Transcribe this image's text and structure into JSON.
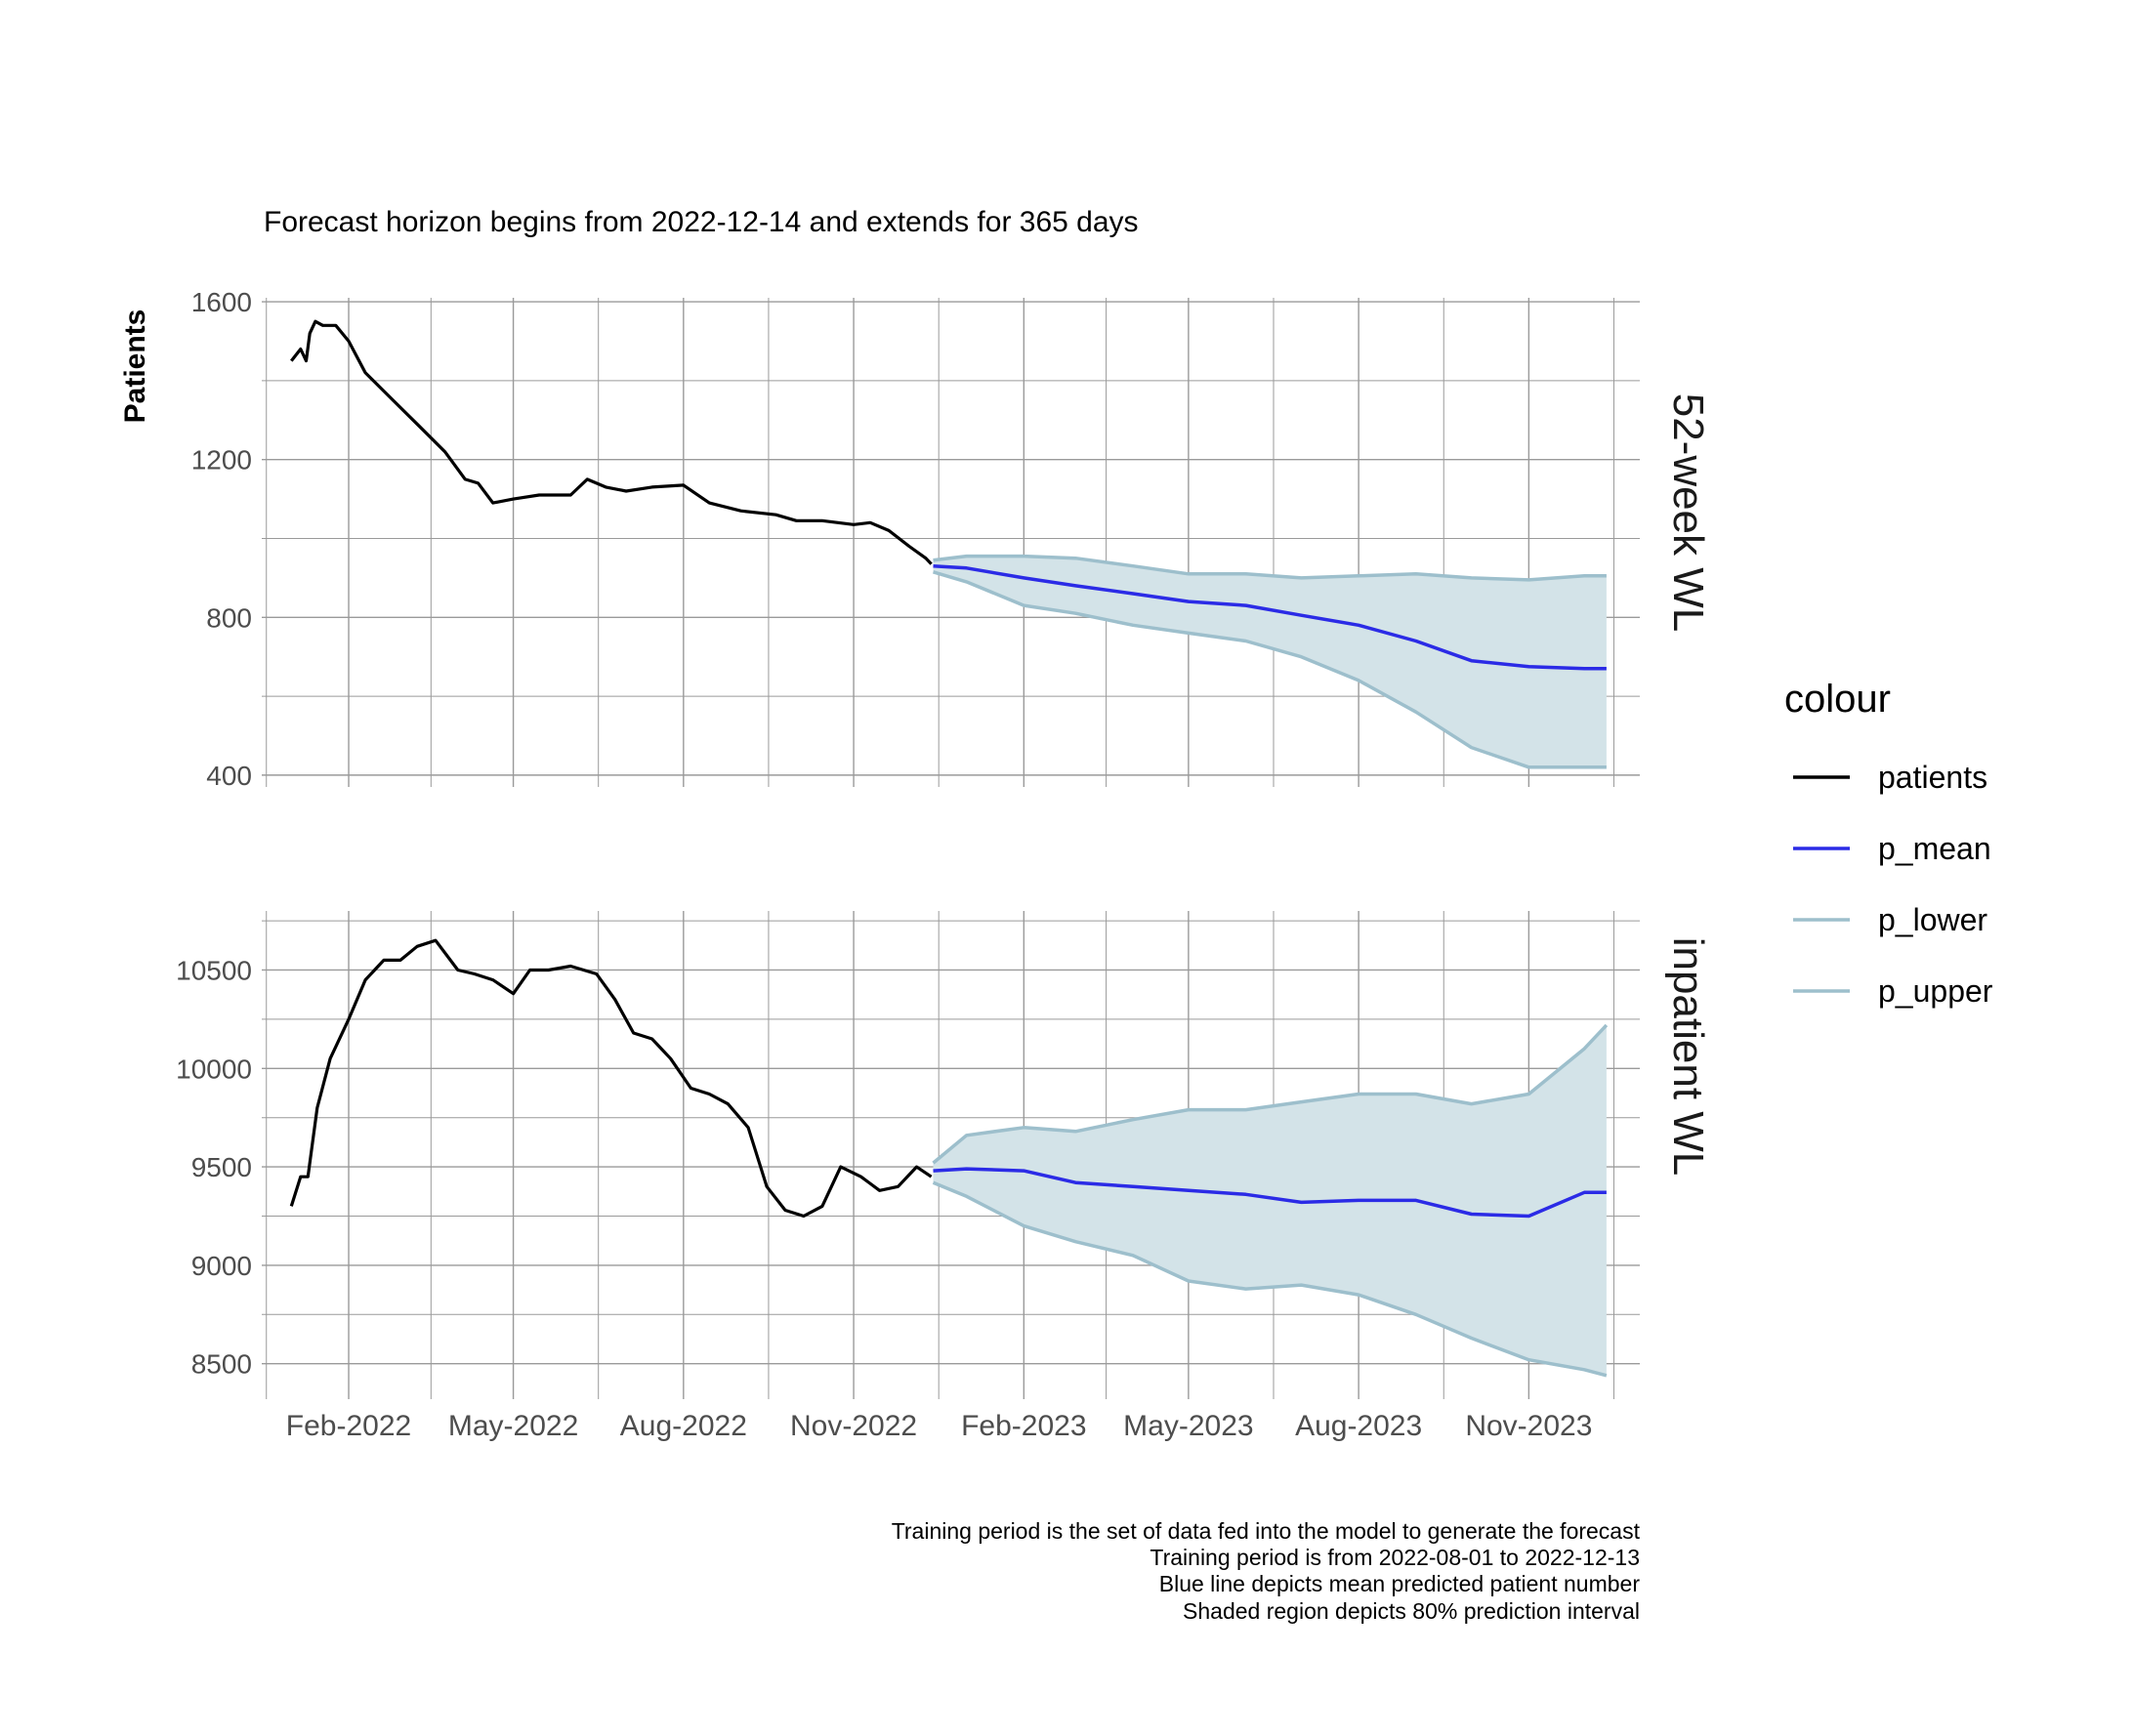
{
  "subtitle": "Forecast horizon begins from 2022-12-14 and extends for 365 days",
  "ylabel": "Patients",
  "caption": [
    "Training period is the set of data fed into the model to generate the forecast",
    "Training period is from 2022-08-01 to 2022-12-13",
    "Blue line depicts mean predicted patient number",
    "Shaded region depicts 80% prediction interval"
  ],
  "legend": {
    "title": "colour",
    "entries": [
      {
        "label": "patients",
        "color": "#000000"
      },
      {
        "label": "p_mean",
        "color": "#2b2be6"
      },
      {
        "label": "p_lower",
        "color": "#9dbfcc"
      },
      {
        "label": "p_upper",
        "color": "#9dbfcc"
      }
    ]
  },
  "colors": {
    "patients": "#000000",
    "p_mean": "#2b2be6",
    "band_line": "#9dbfcc",
    "band_fill": "#d3e3e8",
    "grid": "#9a9a9a"
  },
  "chart_data": [
    {
      "type": "line",
      "panel": "52-week WL",
      "x_tick_labels": [
        "Feb-2022",
        "May-2022",
        "Aug-2022",
        "Nov-2022",
        "Feb-2023",
        "May-2023",
        "Aug-2023",
        "Nov-2023"
      ],
      "x_ticks": [
        "2022-02-01",
        "2022-05-01",
        "2022-08-01",
        "2022-11-01",
        "2023-02-01",
        "2023-05-01",
        "2023-08-01",
        "2023-11-01"
      ],
      "xlim": [
        "2021-12-16",
        "2023-12-31"
      ],
      "y_ticks": [
        400,
        800,
        1200,
        1600
      ],
      "ylim": [
        370,
        1610
      ],
      "series": [
        {
          "name": "patients",
          "x": [
            "2022-01-01",
            "2022-01-06",
            "2022-01-09",
            "2022-01-11",
            "2022-01-14",
            "2022-01-18",
            "2022-01-25",
            "2022-02-01",
            "2022-02-10",
            "2022-02-25",
            "2022-03-10",
            "2022-03-25",
            "2022-04-05",
            "2022-04-12",
            "2022-04-20",
            "2022-05-01",
            "2022-05-15",
            "2022-06-01",
            "2022-06-10",
            "2022-06-20",
            "2022-07-01",
            "2022-07-15",
            "2022-08-01",
            "2022-08-15",
            "2022-09-01",
            "2022-09-20",
            "2022-10-01",
            "2022-10-15",
            "2022-11-01",
            "2022-11-10",
            "2022-11-20",
            "2022-12-01",
            "2022-12-10",
            "2022-12-13"
          ],
          "y": [
            1450,
            1480,
            1450,
            1520,
            1550,
            1540,
            1540,
            1500,
            1420,
            1350,
            1290,
            1220,
            1150,
            1140,
            1090,
            1100,
            1110,
            1110,
            1150,
            1130,
            1120,
            1130,
            1135,
            1090,
            1070,
            1060,
            1045,
            1045,
            1035,
            1040,
            1020,
            980,
            950,
            935
          ]
        },
        {
          "name": "p_mean",
          "x": [
            "2022-12-14",
            "2023-01-01",
            "2023-02-01",
            "2023-03-01",
            "2023-04-01",
            "2023-05-01",
            "2023-06-01",
            "2023-07-01",
            "2023-08-01",
            "2023-09-01",
            "2023-10-01",
            "2023-11-01",
            "2023-12-01",
            "2023-12-13"
          ],
          "y": [
            930,
            925,
            900,
            880,
            860,
            840,
            830,
            805,
            780,
            740,
            690,
            675,
            670,
            670
          ]
        },
        {
          "name": "p_lower",
          "x": [
            "2022-12-14",
            "2023-01-01",
            "2023-02-01",
            "2023-03-01",
            "2023-04-01",
            "2023-05-01",
            "2023-06-01",
            "2023-07-01",
            "2023-08-01",
            "2023-09-01",
            "2023-10-01",
            "2023-11-01",
            "2023-12-01",
            "2023-12-13"
          ],
          "y": [
            915,
            890,
            830,
            810,
            780,
            760,
            740,
            700,
            640,
            560,
            470,
            420,
            420,
            420
          ]
        },
        {
          "name": "p_upper",
          "x": [
            "2022-12-14",
            "2023-01-01",
            "2023-02-01",
            "2023-03-01",
            "2023-04-01",
            "2023-05-01",
            "2023-06-01",
            "2023-07-01",
            "2023-08-01",
            "2023-09-01",
            "2023-10-01",
            "2023-11-01",
            "2023-12-01",
            "2023-12-13"
          ],
          "y": [
            945,
            955,
            955,
            950,
            930,
            910,
            910,
            900,
            905,
            910,
            900,
            895,
            905,
            905
          ]
        }
      ]
    },
    {
      "type": "line",
      "panel": "inpatient WL",
      "x_tick_labels": [
        "Feb-2022",
        "May-2022",
        "Aug-2022",
        "Nov-2022",
        "Feb-2023",
        "May-2023",
        "Aug-2023",
        "Nov-2023"
      ],
      "x_ticks": [
        "2022-02-01",
        "2022-05-01",
        "2022-08-01",
        "2022-11-01",
        "2023-02-01",
        "2023-05-01",
        "2023-08-01",
        "2023-11-01"
      ],
      "xlim": [
        "2021-12-16",
        "2023-12-31"
      ],
      "y_ticks": [
        8500,
        9000,
        9500,
        10000,
        10500
      ],
      "ylim": [
        8320,
        10800
      ],
      "series": [
        {
          "name": "patients",
          "x": [
            "2022-01-01",
            "2022-01-06",
            "2022-01-10",
            "2022-01-15",
            "2022-01-22",
            "2022-02-01",
            "2022-02-10",
            "2022-02-20",
            "2022-03-01",
            "2022-03-10",
            "2022-03-20",
            "2022-04-01",
            "2022-04-10",
            "2022-04-20",
            "2022-05-01",
            "2022-05-10",
            "2022-05-20",
            "2022-06-01",
            "2022-06-15",
            "2022-06-25",
            "2022-07-05",
            "2022-07-15",
            "2022-07-25",
            "2022-08-05",
            "2022-08-15",
            "2022-08-25",
            "2022-09-05",
            "2022-09-15",
            "2022-09-25",
            "2022-10-05",
            "2022-10-15",
            "2022-10-25",
            "2022-11-05",
            "2022-11-15",
            "2022-11-25",
            "2022-12-05",
            "2022-12-13"
          ],
          "y": [
            9300,
            9450,
            9450,
            9800,
            10050,
            10250,
            10450,
            10550,
            10550,
            10620,
            10650,
            10500,
            10480,
            10450,
            10380,
            10500,
            10500,
            10520,
            10480,
            10350,
            10180,
            10150,
            10050,
            9900,
            9870,
            9820,
            9700,
            9400,
            9280,
            9250,
            9300,
            9500,
            9450,
            9380,
            9400,
            9500,
            9450
          ]
        },
        {
          "name": "p_mean",
          "x": [
            "2022-12-14",
            "2023-01-01",
            "2023-02-01",
            "2023-03-01",
            "2023-04-01",
            "2023-05-01",
            "2023-06-01",
            "2023-07-01",
            "2023-08-01",
            "2023-09-01",
            "2023-10-01",
            "2023-11-01",
            "2023-12-01",
            "2023-12-13"
          ],
          "y": [
            9480,
            9490,
            9480,
            9420,
            9400,
            9380,
            9360,
            9320,
            9330,
            9330,
            9260,
            9250,
            9370,
            9370
          ]
        },
        {
          "name": "p_lower",
          "x": [
            "2022-12-14",
            "2023-01-01",
            "2023-02-01",
            "2023-03-01",
            "2023-04-01",
            "2023-05-01",
            "2023-06-01",
            "2023-07-01",
            "2023-08-01",
            "2023-09-01",
            "2023-10-01",
            "2023-11-01",
            "2023-12-01",
            "2023-12-13"
          ],
          "y": [
            9420,
            9350,
            9200,
            9120,
            9050,
            8920,
            8880,
            8900,
            8850,
            8750,
            8630,
            8520,
            8470,
            8440
          ]
        },
        {
          "name": "p_upper",
          "x": [
            "2022-12-14",
            "2023-01-01",
            "2023-02-01",
            "2023-03-01",
            "2023-04-01",
            "2023-05-01",
            "2023-06-01",
            "2023-07-01",
            "2023-08-01",
            "2023-09-01",
            "2023-10-01",
            "2023-11-01",
            "2023-12-01",
            "2023-12-13"
          ],
          "y": [
            9520,
            9660,
            9700,
            9680,
            9740,
            9790,
            9790,
            9830,
            9870,
            9870,
            9820,
            9870,
            10100,
            10220
          ]
        }
      ]
    }
  ]
}
